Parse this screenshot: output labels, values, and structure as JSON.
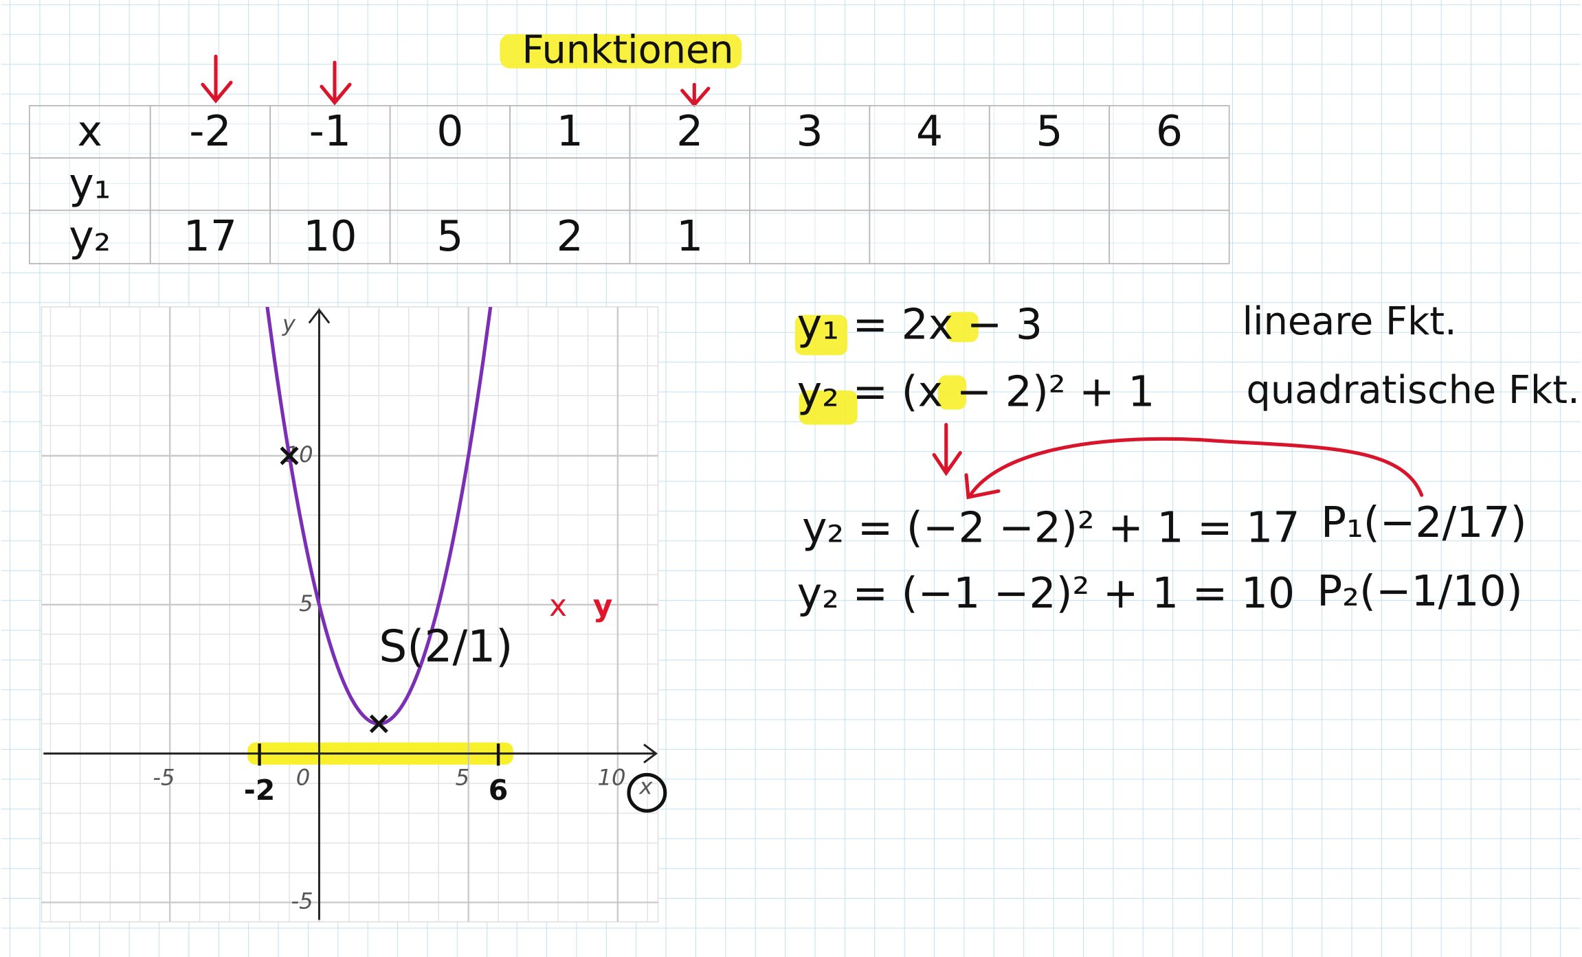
{
  "title": "Funktionen",
  "table": {
    "rows": [
      [
        "x",
        -2,
        -1,
        0,
        1,
        2,
        3,
        4,
        5,
        6
      ],
      [
        "y₁"
      ],
      [
        "y₂",
        17,
        10,
        5,
        2,
        1
      ]
    ]
  },
  "notes": {
    "lines": [
      {
        "equation": "y₁ = 2x − 3",
        "comment": "lineare Fkt."
      },
      {
        "equation": "y₂ = (x − 2)² + 1",
        "comment": "quadratische Fkt."
      },
      {
        "equation": "y₂ = (−2 −2)² + 1 = 17",
        "comment": "P₁(−2/17)"
      },
      {
        "equation": "y₂ = (−1 −2)² + 1 = 10",
        "comment": "P₂(−1/10)"
      }
    ]
  },
  "chart_data": {
    "type": "line",
    "x_label": "x",
    "y_label": "y",
    "x": [
      -2,
      -1.5,
      -1,
      -0.5,
      0,
      0.5,
      1,
      1.5,
      2,
      2.5,
      3,
      3.5,
      4,
      4.5,
      5,
      5.5,
      6
    ],
    "values": [
      17,
      13.25,
      10,
      7.25,
      5,
      3.25,
      2,
      1.25,
      1,
      1.25,
      2,
      3.25,
      5,
      7.25,
      10,
      13.25,
      17
    ],
    "color": "#7b2fb5",
    "xlim": [
      -9.3,
      11.35
    ],
    "ylim": [
      -5.65,
      15
    ],
    "xticks": [
      -5,
      0,
      5,
      10
    ],
    "yticks": [
      -5,
      5,
      10
    ],
    "grid": true,
    "points": {
      "x": [
        -1,
        2
      ],
      "y": [
        10,
        1
      ]
    },
    "annotations": [
      {
        "text": "S(2/1)",
        "x": 2,
        "y": 3.5
      },
      {
        "text": "x",
        "x": 8,
        "y": 4.9
      },
      {
        "text": "y",
        "x": 9.5,
        "y": 4.9
      },
      {
        "text": "-2",
        "x": -2,
        "y": -1.3
      },
      {
        "text": "6",
        "x": 6,
        "y": -1.3
      }
    ]
  }
}
